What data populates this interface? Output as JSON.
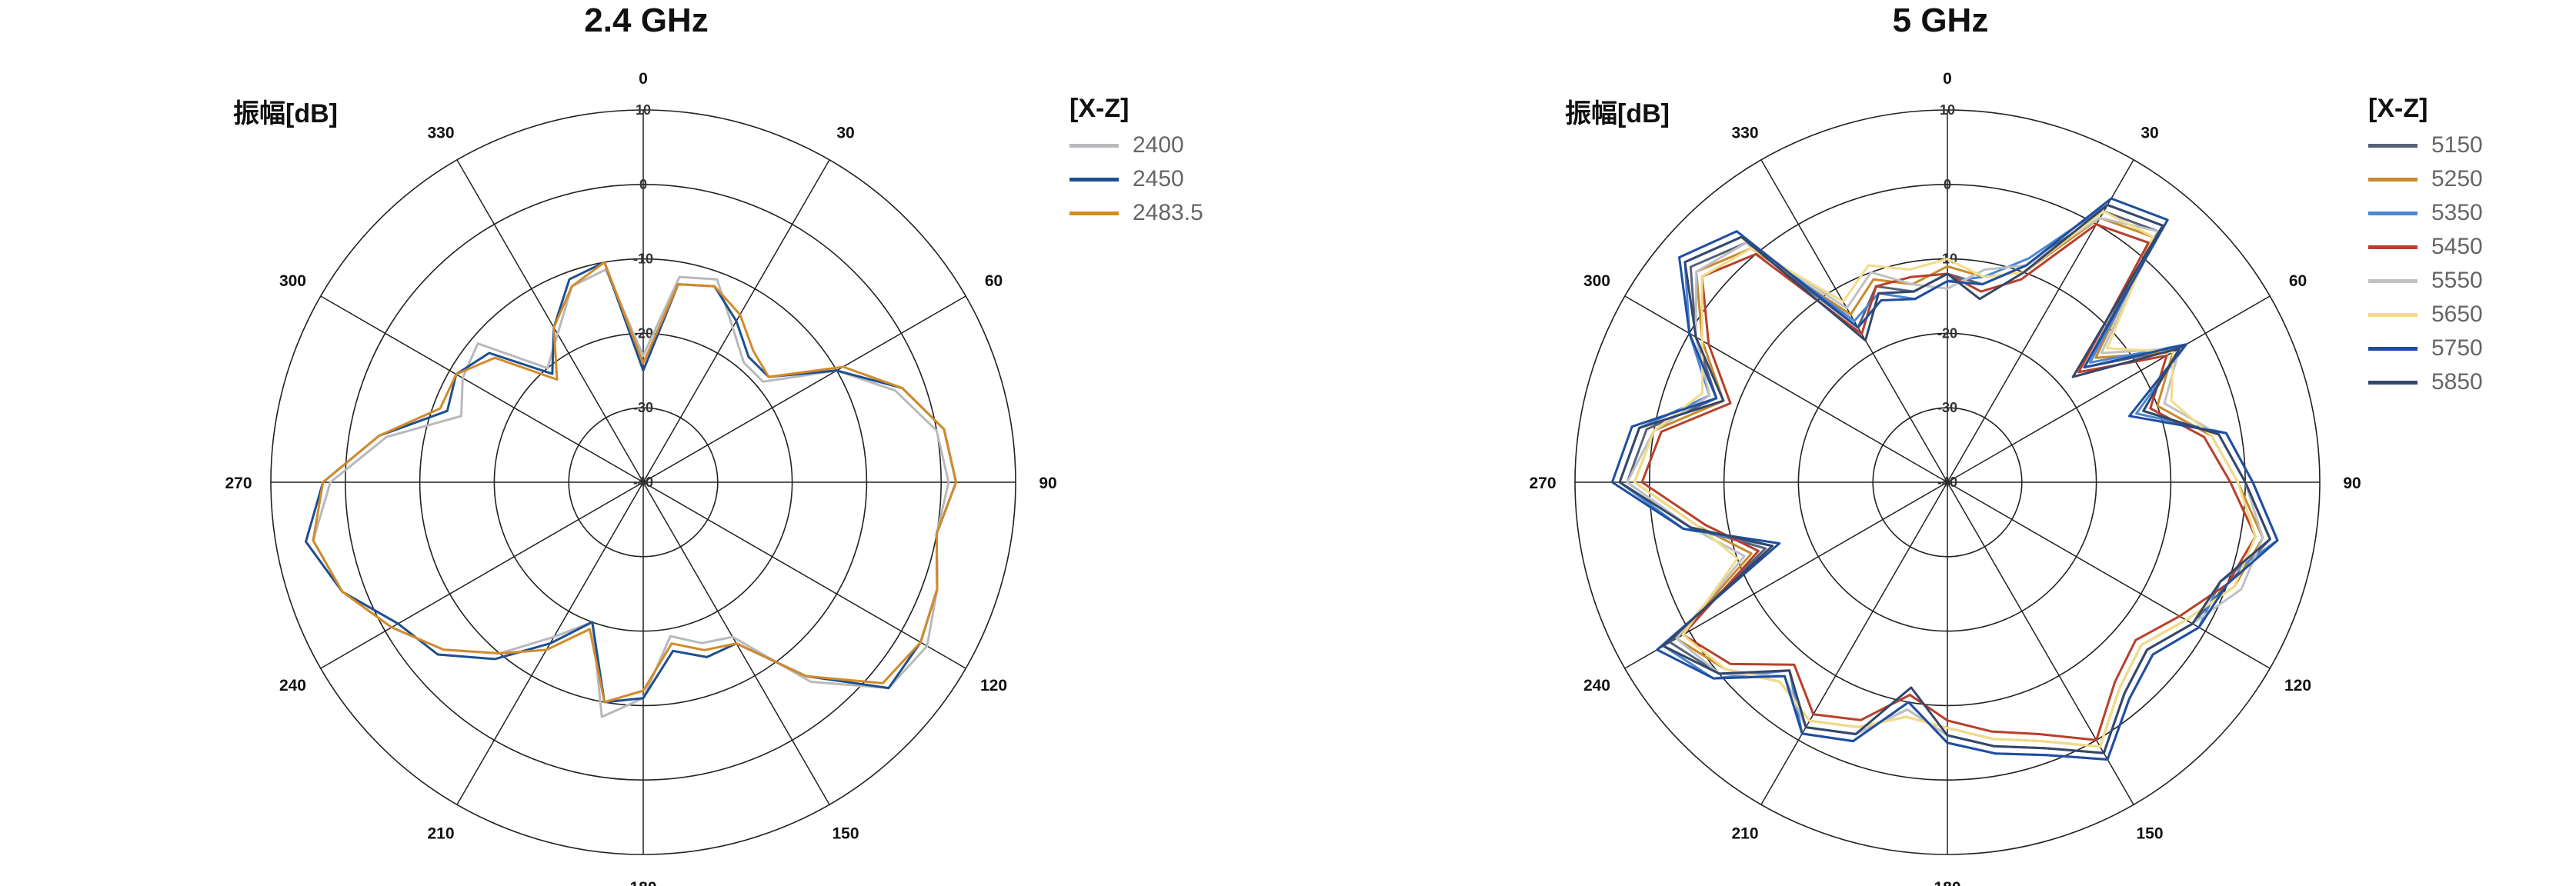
{
  "chart_data": [
    {
      "type": "polar-line",
      "title": "2.4 GHz",
      "radial_label": "振幅[dB]",
      "r_range": [
        -40,
        10
      ],
      "r_ticks": [
        "-40",
        "-30",
        "-20",
        "-10",
        "0",
        "10"
      ],
      "angle_ticks": [
        "0",
        "30",
        "60",
        "90",
        "120",
        "150",
        "180",
        "210",
        "240",
        "270",
        "300",
        "330"
      ],
      "legend_title": "[X-Z]",
      "series": [
        {
          "name": "2400",
          "color": "#b7b9bc",
          "values": [
            -23,
            -12,
            -11,
            -16,
            -19,
            -19,
            -10,
            -4,
            0,
            1,
            0,
            2,
            4,
            3,
            -5,
            -16,
            -17,
            -19,
            -11,
            -8,
            -20,
            -16,
            -10,
            -5,
            -1,
            3,
            5,
            2,
            -5,
            -14,
            -12,
            -11,
            -20,
            -17,
            -12,
            -11
          ]
        },
        {
          "name": "2450",
          "color": "#1d4f91",
          "values": [
            -25,
            -13,
            -12,
            -15,
            -18,
            -18,
            -10,
            -3,
            1,
            2,
            0,
            2,
            3,
            3,
            -6,
            -15,
            -15,
            -17,
            -11,
            -10,
            -20,
            -15,
            -9,
            -4,
            -2,
            3,
            6,
            3,
            -4,
            -12,
            -11,
            -13,
            -21,
            -16,
            -11,
            -10
          ]
        },
        {
          "name": "2483.5",
          "color": "#d38a2a",
          "values": [
            -24,
            -13,
            -12,
            -14,
            -17,
            -18,
            -9,
            -3,
            1,
            2,
            0,
            2,
            3,
            2,
            -6,
            -15,
            -16,
            -18,
            -12,
            -10,
            -19,
            -14,
            -10,
            -5,
            -1,
            3,
            5,
            3,
            -4,
            -11,
            -11,
            -14,
            -22,
            -16,
            -12,
            -10
          ]
        }
      ]
    },
    {
      "type": "polar-line",
      "title": "5 GHz",
      "radial_label": "振幅[dB]",
      "r_range": [
        -40,
        10
      ],
      "r_ticks": [
        "-40",
        "-30",
        "-20",
        "-10",
        "0",
        "10"
      ],
      "angle_ticks": [
        "0",
        "30",
        "60",
        "90",
        "120",
        "150",
        "180",
        "210",
        "240",
        "270",
        "300",
        "330"
      ],
      "legend_title": "[X-Z]",
      "series": [
        {
          "name": "5150",
          "color": "#57627a",
          "values": [
            -12,
            -13,
            -9,
            2,
            4,
            -16,
            -4,
            -12,
            -3,
            0,
            4,
            0,
            -2,
            -5,
            -3,
            2,
            -2,
            -4,
            -6,
            -9,
            -4,
            -2,
            -6,
            0,
            3,
            -14,
            -5,
            3,
            1,
            -7,
            -1,
            5,
            2,
            -16,
            -12,
            -14
          ]
        },
        {
          "name": "5250",
          "color": "#c88a2c",
          "values": [
            -11,
            -12,
            -10,
            1,
            3,
            -14,
            -5,
            -10,
            -4,
            -1,
            3,
            1,
            -3,
            -6,
            -4,
            1,
            -3,
            -5,
            -7,
            -8,
            -5,
            -3,
            -5,
            -1,
            2,
            -12,
            -6,
            2,
            0,
            -8,
            -2,
            4,
            1,
            -14,
            -11,
            -13
          ]
        },
        {
          "name": "5350",
          "color": "#4b87d3",
          "values": [
            -13,
            -12,
            -8,
            3,
            5,
            -15,
            -3,
            -13,
            -2,
            1,
            5,
            -1,
            -1,
            -4,
            -2,
            3,
            -1,
            -3,
            -5,
            -10,
            -3,
            -1,
            -7,
            1,
            4,
            -15,
            -4,
            4,
            2,
            -6,
            0,
            6,
            3,
            -15,
            -13,
            -15
          ]
        },
        {
          "name": "5450",
          "color": "#b8402a",
          "values": [
            -12,
            -14,
            -11,
            0,
            2,
            -17,
            -6,
            -11,
            -5,
            -2,
            2,
            0,
            -4,
            -7,
            -5,
            0,
            -4,
            -6,
            -8,
            -11,
            -6,
            -4,
            -8,
            -2,
            1,
            -13,
            -7,
            1,
            -1,
            -9,
            -3,
            3,
            0,
            -17,
            -12,
            -12
          ]
        },
        {
          "name": "5550",
          "color": "#bfc1c4",
          "values": [
            -14,
            -11,
            -9,
            1,
            4,
            -13,
            -4,
            -9,
            -3,
            0,
            3,
            2,
            -2,
            -5,
            -3,
            2,
            -2,
            -4,
            -6,
            -9,
            -4,
            -2,
            -6,
            0,
            2,
            -11,
            -5,
            3,
            0,
            -6,
            -1,
            4,
            2,
            -13,
            -10,
            -13
          ]
        },
        {
          "name": "5650",
          "color": "#f1dc8a",
          "values": [
            -10,
            -12,
            -10,
            2,
            3,
            -12,
            -5,
            -8,
            -4,
            -1,
            2,
            1,
            -3,
            -6,
            -4,
            1,
            -3,
            -5,
            -7,
            -8,
            -5,
            -3,
            -5,
            -1,
            1,
            -10,
            -6,
            2,
            0,
            -5,
            -2,
            3,
            1,
            -12,
            -9,
            -11
          ]
        },
        {
          "name": "5750",
          "color": "#1f4ea0",
          "values": [
            -13,
            -13,
            -9,
            4,
            6,
            -16,
            -3,
            -14,
            -2,
            1,
            5,
            0,
            -1,
            -4,
            -2,
            3,
            -1,
            -3,
            -5,
            -10,
            -3,
            -1,
            -6,
            1,
            5,
            -16,
            -4,
            5,
            3,
            -7,
            0,
            7,
            4,
            -16,
            -14,
            -15
          ]
        },
        {
          "name": "5850",
          "color": "#34476a",
          "values": [
            -12,
            -15,
            -10,
            3,
            5,
            -18,
            -4,
            -12,
            -3,
            0,
            4,
            -1,
            -2,
            -5,
            -3,
            2,
            -2,
            -4,
            -6,
            -12,
            -4,
            -2,
            -7,
            0,
            4,
            -15,
            -5,
            4,
            2,
            -8,
            -1,
            6,
            3,
            -18,
            -13,
            -14
          ]
        }
      ]
    }
  ]
}
